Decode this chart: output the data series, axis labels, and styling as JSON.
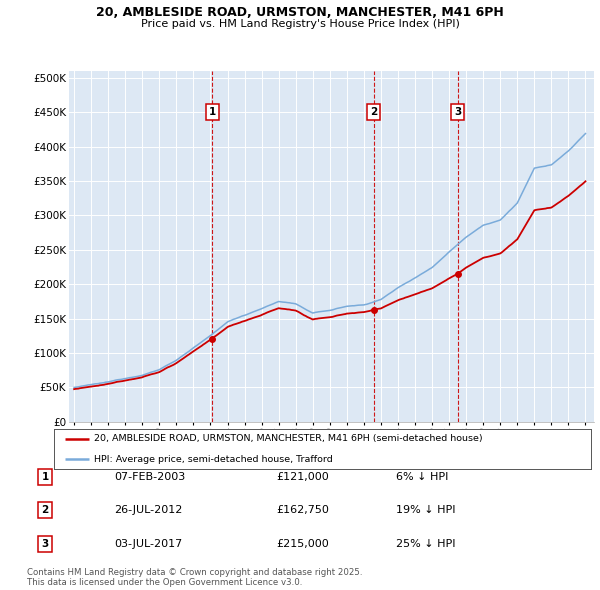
{
  "title1": "20, AMBLESIDE ROAD, URMSTON, MANCHESTER, M41 6PH",
  "title2": "Price paid vs. HM Land Registry's House Price Index (HPI)",
  "ytick_labels": [
    "£0",
    "£50K",
    "£100K",
    "£150K",
    "£200K",
    "£250K",
    "£300K",
    "£350K",
    "£400K",
    "£450K",
    "£500K"
  ],
  "ytick_values": [
    0,
    50000,
    100000,
    150000,
    200000,
    250000,
    300000,
    350000,
    400000,
    450000,
    500000
  ],
  "ylim": [
    0,
    510000
  ],
  "xlim_start": 1994.7,
  "xlim_end": 2025.5,
  "bg_color": "#dde8f4",
  "grid_color": "#ffffff",
  "legend_label_red": "20, AMBLESIDE ROAD, URMSTON, MANCHESTER, M41 6PH (semi-detached house)",
  "legend_label_blue": "HPI: Average price, semi-detached house, Trafford",
  "sale1_year": 2003.1,
  "sale1_price": 121000,
  "sale2_year": 2012.58,
  "sale2_price": 162750,
  "sale3_year": 2017.5,
  "sale3_price": 215000,
  "transactions": [
    {
      "num": 1,
      "date": "07-FEB-2003",
      "price": 121000,
      "pct": "6%",
      "dir": "↓",
      "year_x": 2003.1
    },
    {
      "num": 2,
      "date": "26-JUL-2012",
      "price": 162750,
      "pct": "19%",
      "dir": "↓",
      "year_x": 2012.58
    },
    {
      "num": 3,
      "date": "03-JUL-2017",
      "price": 215000,
      "pct": "25%",
      "dir": "↓",
      "year_x": 2017.5
    }
  ],
  "footnote": "Contains HM Land Registry data © Crown copyright and database right 2025.\nThis data is licensed under the Open Government Licence v3.0.",
  "red_color": "#cc0000",
  "blue_color": "#7aabda"
}
